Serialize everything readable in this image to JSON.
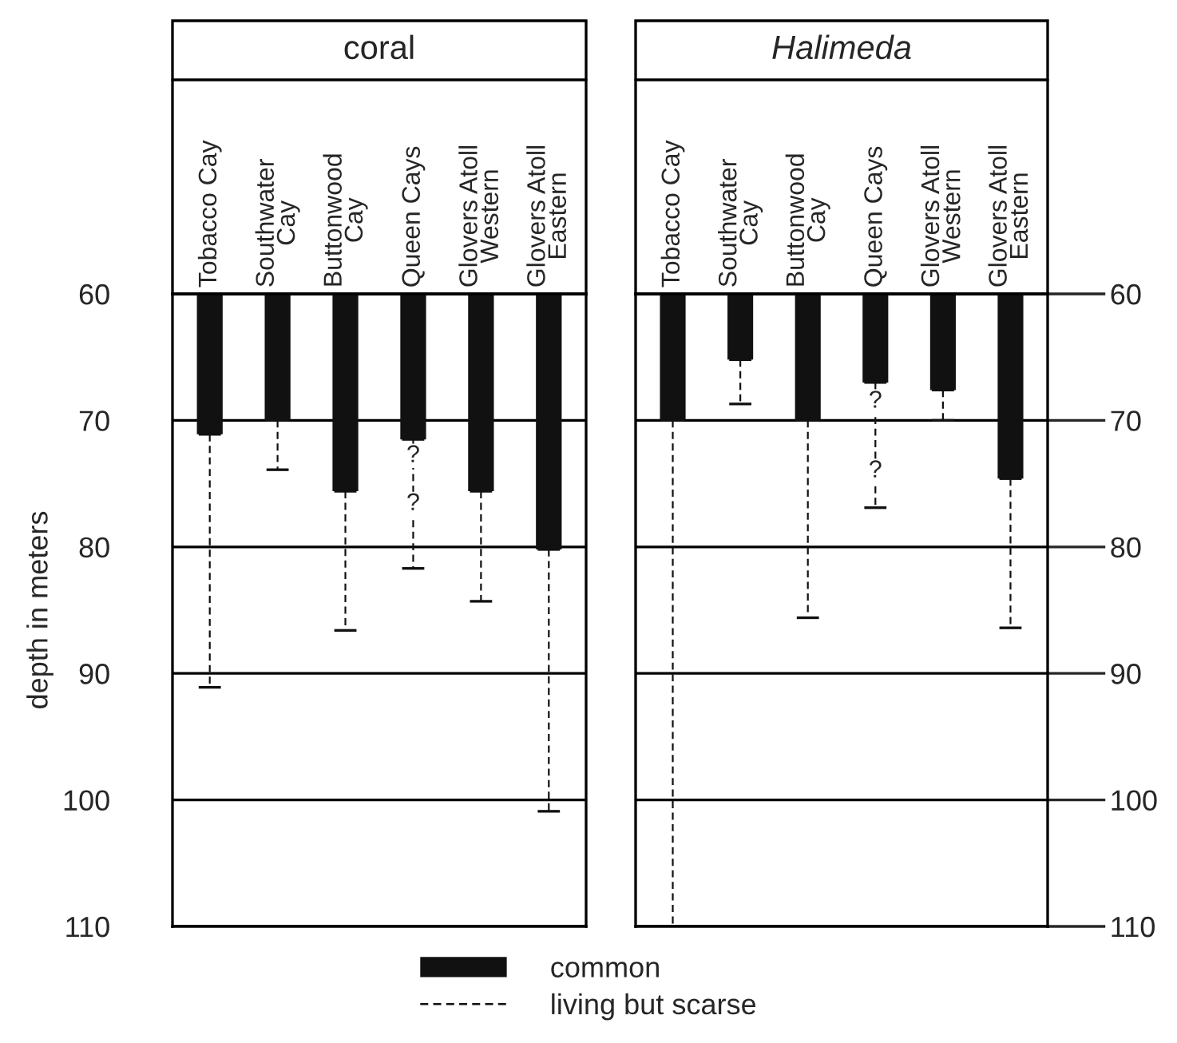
{
  "chart_data": [
    {
      "type": "bar",
      "title": "coral",
      "categories": [
        "Tobacco Cay",
        "Southwater\nCay",
        "Buttonwood\nCay",
        "Queen Cays",
        "Glovers Atoll\nWestern",
        "Glovers Atoll\nEastern"
      ],
      "ylabel": "depth in meters",
      "ylim": [
        110,
        60
      ],
      "yticks": [
        60,
        70,
        80,
        90,
        100,
        110
      ],
      "grid": "y",
      "legend": "bottom",
      "series": [
        {
          "name": "common",
          "color": "#111111",
          "values": [
            71.1,
            70,
            75.6,
            71.5,
            75.6,
            80.2
          ],
          "errors": [
            [
              71.1,
              91.1
            ],
            [
              70,
              73.9
            ],
            [
              75.6,
              86.6
            ],
            [
              71.5,
              81.7
            ],
            [
              75.6,
              84.3
            ],
            [
              80.2,
              100.9
            ]
          ],
          "line_style": "dashed"
        }
      ],
      "annotations": [
        "living but scarse",
        {
          "text": "?",
          "x": "Queen Cays",
          "y": 72.8
        },
        {
          "text": "?",
          "x": "Queen Cays",
          "y": 76.6
        }
      ]
    },
    {
      "type": "bar",
      "title": "Halimeda",
      "categories": [
        "Tobacco Cay",
        "Southwater\nCay",
        "Buttonwood\nCay",
        "Queen Cays",
        "Glovers Atoll\nWestern",
        "Glovers Atoll\nEastern"
      ],
      "ylim": [
        110,
        60
      ],
      "yticks": [
        60,
        70,
        80,
        90,
        100,
        110
      ],
      "grid": "y",
      "series": [
        {
          "color": "#111111",
          "values": [
            70,
            65.2,
            70,
            67,
            67.6,
            74.6
          ],
          "errors": [
            [
              70,
              110
            ],
            [
              65.2,
              68.7
            ],
            [
              70,
              85.6
            ],
            [
              67,
              76.9
            ],
            [
              67.6,
              70
            ],
            [
              74.6,
              86.4
            ]
          ],
          "line_style": "dashed"
        }
      ],
      "annotations": [
        {
          "text": "?",
          "x": "Queen Cays",
          "y": 68.5
        },
        {
          "text": "?",
          "x": "Queen Cays",
          "y": 74.0
        }
      ]
    }
  ]
}
